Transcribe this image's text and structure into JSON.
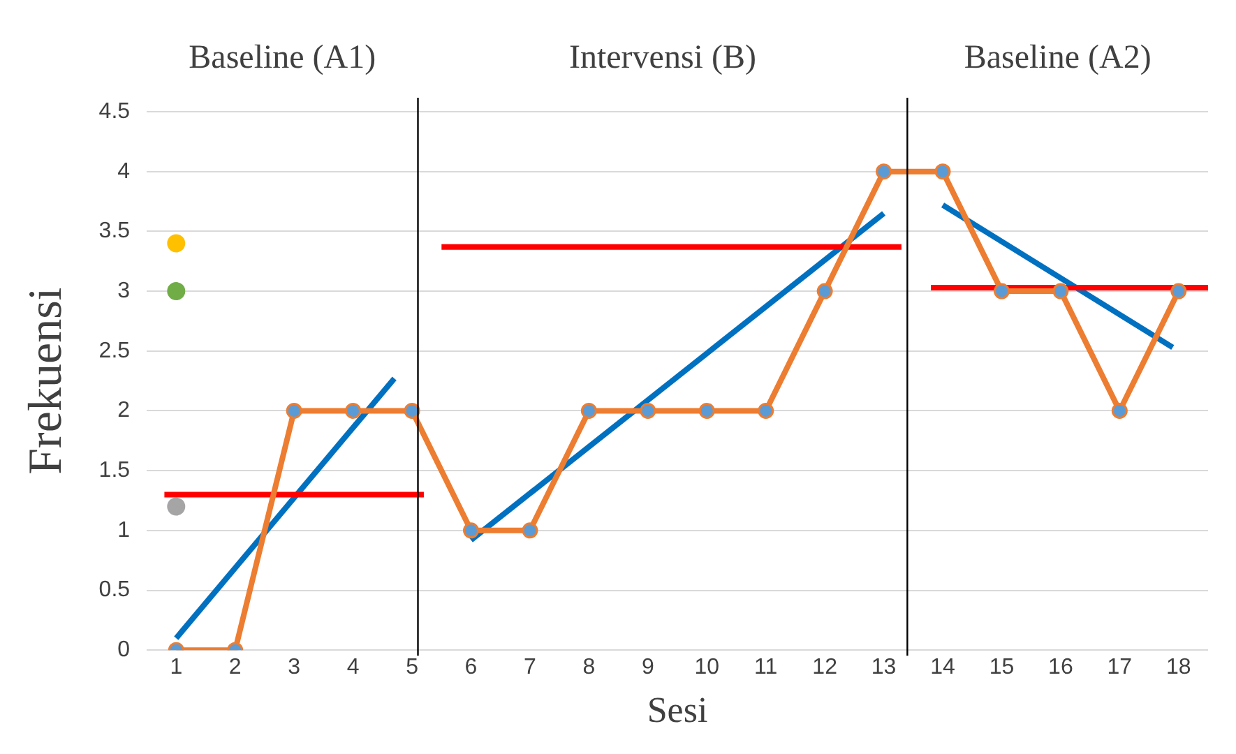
{
  "chart_data": {
    "type": "line",
    "xlabel": "Sesi",
    "ylabel": "Frekuensi",
    "annotations": [
      "Baseline (A1)",
      "Intervensi (B)",
      "Baseline (A2)"
    ],
    "xlim": [
      0.5,
      18.5
    ],
    "xticks": [
      1,
      2,
      3,
      4,
      5,
      6,
      7,
      8,
      9,
      10,
      11,
      12,
      13,
      14,
      15,
      16,
      17,
      18
    ],
    "ylim": [
      0,
      4.5
    ],
    "yticks": [
      0,
      0.5,
      1,
      1.5,
      2,
      2.5,
      3,
      3.5,
      4,
      4.5
    ],
    "grid": "y",
    "legend": false,
    "ref_lines": [
      {
        "axis": "x",
        "value": 5.1,
        "color": "#000000"
      },
      {
        "axis": "x",
        "value": 13.4,
        "color": "#000000"
      }
    ],
    "series": [
      {
        "color": "#ed7d31",
        "marker": "circle",
        "colors": [
          "#5b9bd5",
          "#5b9bd5",
          "#5b9bd5",
          "#5b9bd5",
          "#5b9bd5",
          "#5b9bd5",
          "#5b9bd5",
          "#5b9bd5",
          "#5b9bd5",
          "#5b9bd5",
          "#5b9bd5",
          "#5b9bd5",
          "#5b9bd5",
          "#5b9bd5",
          "#5b9bd5",
          "#5b9bd5",
          "#5b9bd5",
          "#5b9bd5"
        ],
        "x": [
          1,
          2,
          3,
          4,
          5,
          6,
          7,
          8,
          9,
          10,
          11,
          12,
          13,
          14,
          15,
          16,
          17,
          18
        ],
        "values": [
          0,
          0,
          2,
          2,
          2,
          1,
          1,
          2,
          2,
          2,
          2,
          3,
          4,
          4,
          3,
          3,
          2,
          3
        ]
      },
      {
        "color": "#ff0000",
        "x": [
          0.8,
          5.2
        ],
        "values": [
          1.3,
          1.3
        ]
      },
      {
        "color": "#ff0000",
        "x": [
          5.5,
          13.3
        ],
        "values": [
          3.37,
          3.37
        ]
      },
      {
        "color": "#ff0000",
        "x": [
          13.8,
          18.5
        ],
        "values": [
          3.03,
          3.03
        ]
      },
      {
        "color": "#0070c0",
        "x": [
          1,
          4.7
        ],
        "values": [
          0.1,
          2.27
        ]
      },
      {
        "color": "#0070c0",
        "x": [
          6,
          13
        ],
        "values": [
          0.92,
          3.65
        ]
      },
      {
        "color": "#0070c0",
        "x": [
          14,
          17.9
        ],
        "values": [
          3.72,
          2.53
        ]
      },
      {
        "type": "scatter",
        "color": "#ffc000",
        "x": [
          1
        ],
        "values": [
          3.4
        ]
      },
      {
        "type": "scatter",
        "color": "#70ad47",
        "x": [
          1
        ],
        "values": [
          3.0
        ]
      },
      {
        "type": "scatter",
        "color": "#a5a5a5",
        "x": [
          1
        ],
        "values": [
          1.2
        ]
      }
    ]
  }
}
